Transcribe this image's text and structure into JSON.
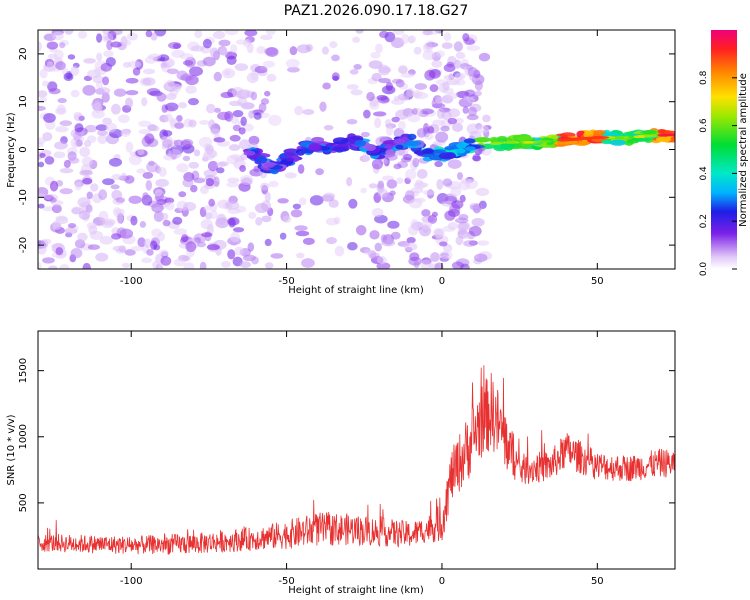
{
  "figure_title": "PAZ1.2026.090.17.18.G27",
  "colors": {
    "snr_line": "#e83030",
    "axis": "#000000",
    "blob_light": "#e6d2f7",
    "blob_dark": "#6a12e0"
  },
  "chart_data": [
    {
      "type": "heatmap",
      "title": "PAZ1.2026.090.17.18.G27",
      "xlabel": "Height of straight line (km)",
      "ylabel": "Frequency (Hz)",
      "xlim": [
        -130,
        75
      ],
      "ylim": [
        -25,
        25
      ],
      "xticks": [
        -100,
        -50,
        0,
        50
      ],
      "yticks": [
        20,
        10,
        0,
        -10,
        -20
      ],
      "colorbar": {
        "label": "Normalized spectral amplitude",
        "range": [
          0,
          1
        ],
        "ticks": [
          0.0,
          0.2,
          0.4,
          0.6,
          0.8
        ]
      },
      "ridge": {
        "description": "dominant frequency track",
        "x": [
          -60,
          -55,
          -50,
          -45,
          -40,
          -35,
          -30,
          -25,
          -20,
          -15,
          -10,
          -5,
          0,
          5,
          10,
          15,
          20,
          30,
          40,
          50,
          60,
          70,
          75
        ],
        "freq": [
          -1,
          -4,
          -2,
          0,
          1,
          0,
          2,
          1,
          -1,
          1,
          2,
          -1,
          -1,
          0,
          1,
          1,
          1.5,
          1.5,
          2,
          2.5,
          2.5,
          3,
          3
        ]
      }
    },
    {
      "type": "line",
      "xlabel": "Height of straight line (km)",
      "ylabel": "SNR (10 * v/v)",
      "xlim": [
        -130,
        75
      ],
      "ylim": [
        0,
        1800
      ],
      "xticks": [
        -100,
        -50,
        0,
        50
      ],
      "yticks": [
        500,
        1000,
        1500
      ],
      "series": [
        {
          "name": "SNR",
          "x_knots": [
            -130,
            -100,
            -80,
            -60,
            -50,
            -40,
            -30,
            -20,
            -10,
            -5,
            0,
            3,
            8,
            12,
            16,
            20,
            25,
            35,
            40,
            50,
            60,
            70,
            75
          ],
          "mean_knots": [
            200,
            180,
            190,
            230,
            260,
            300,
            300,
            280,
            260,
            300,
            350,
            700,
            900,
            1100,
            1200,
            1000,
            750,
            780,
            900,
            780,
            760,
            800,
            800
          ],
          "spread_knots": [
            70,
            70,
            80,
            90,
            110,
            130,
            120,
            110,
            100,
            100,
            150,
            200,
            250,
            280,
            300,
            250,
            120,
            120,
            140,
            110,
            100,
            110,
            110
          ]
        }
      ]
    }
  ]
}
